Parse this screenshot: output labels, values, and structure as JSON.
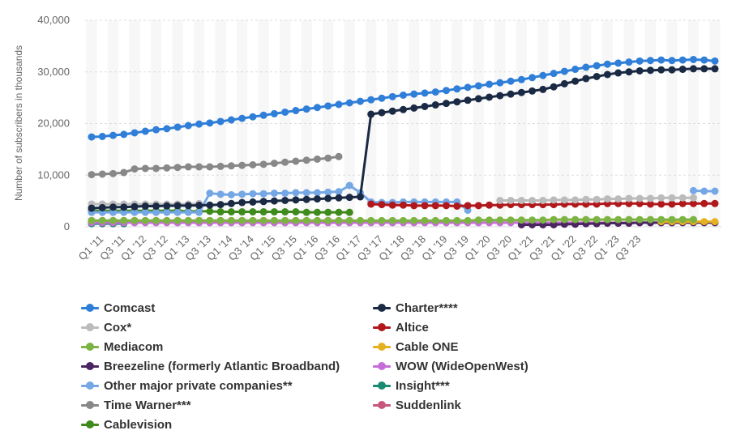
{
  "chart_data": {
    "type": "line",
    "ylabel": "Number of subscribers in thousands",
    "ylim": [
      0,
      40000
    ],
    "yticks": [
      0,
      10000,
      20000,
      30000,
      40000
    ],
    "ytick_labels": [
      "0",
      "10,000",
      "20,000",
      "30,000",
      "40,000"
    ],
    "grid": "horizontal",
    "legend_position": "bottom",
    "x_tick_labels": [
      "Q1 '11",
      "Q3 '11",
      "Q1 '12",
      "Q3 '12",
      "Q1 '13",
      "Q3 '13",
      "Q1 '14",
      "Q3 '14",
      "Q1 '15",
      "Q3 '15",
      "Q1 '16",
      "Q3 '16",
      "Q1 '17",
      "Q3 '17",
      "Q1 '18",
      "Q3 '18",
      "Q1 '19",
      "Q3 '19",
      "Q1 '20",
      "Q3 '20",
      "Q1 '21",
      "Q3 '21",
      "Q1 '22",
      "Q3 '22",
      "Q1 '23",
      "Q3 '23"
    ],
    "series": [
      {
        "name": "Comcast",
        "color": "#2f7ed8",
        "start": 0,
        "values": [
          17400,
          17500,
          17700,
          17900,
          18200,
          18500,
          18800,
          19000,
          19300,
          19600,
          19900,
          20100,
          20400,
          20700,
          21000,
          21300,
          21600,
          21900,
          22200,
          22500,
          22800,
          23100,
          23400,
          23700,
          24000,
          24300,
          24600,
          24900,
          25200,
          25500,
          25700,
          25900,
          26100,
          26400,
          26700,
          27000,
          27300,
          27600,
          27900,
          28200,
          28500,
          28900,
          29300,
          29700,
          30100,
          30500,
          30900,
          31200,
          31500,
          31700,
          31900,
          32100,
          32200,
          32300,
          32200,
          32300,
          32400,
          32300,
          32100
        ]
      },
      {
        "name": "Charter****",
        "color": "#1b2a44",
        "start": 0,
        "values": [
          3600,
          3700,
          3800,
          3800,
          3900,
          4000,
          4000,
          4050,
          4100,
          4100,
          4150,
          4200,
          4300,
          4500,
          4700,
          4800,
          4900,
          5000,
          5100,
          5200,
          5300,
          5400,
          5500,
          5600,
          5700,
          5800,
          21800,
          22100,
          22400,
          22700,
          23000,
          23300,
          23600,
          23900,
          24200,
          24500,
          24800,
          25100,
          25400,
          25700,
          26000,
          26300,
          26600,
          27100,
          27700,
          28200,
          28700,
          29100,
          29500,
          29800,
          30000,
          30200,
          30300,
          30400,
          30400,
          30500,
          30600,
          30600,
          30600
        ]
      },
      {
        "name": "Cox*",
        "color": "#bbbbbb",
        "start": 0,
        "values": [
          4400,
          4400,
          4400,
          4400,
          4400,
          4400,
          4400,
          4400,
          4400,
          4400,
          4500,
          null,
          null,
          null,
          null,
          null,
          null,
          null,
          null,
          null,
          null,
          null,
          null,
          null,
          null,
          null,
          null,
          null,
          null,
          null,
          null,
          null,
          null,
          null,
          null,
          null,
          null,
          null,
          5100,
          5100,
          5100,
          5100,
          5100,
          5200,
          5200,
          5200,
          5300,
          5300,
          5400,
          5400,
          5500,
          5500,
          5500,
          5600,
          5600,
          5600,
          5600
        ]
      },
      {
        "name": "Altice",
        "color": "#b0181c",
        "start": 26,
        "values": [
          4400,
          4300,
          4200,
          4200,
          4100,
          4100,
          4100,
          4100,
          4000,
          4100,
          4100,
          4200,
          4200,
          4300,
          4300,
          4300,
          4300,
          4300,
          4400,
          4400,
          4400,
          4400,
          4500,
          4500,
          4500,
          4500,
          4400,
          4400,
          4400,
          4500,
          4500,
          4500,
          4500
        ]
      },
      {
        "name": "Mediacom",
        "color": "#7cb342",
        "start": 0,
        "values": [
          1200,
          1200,
          1200,
          1200,
          1200,
          1200,
          1200,
          1200,
          1200,
          1200,
          1200,
          1200,
          1200,
          1200,
          1200,
          1200,
          1200,
          1200,
          1200,
          1200,
          1200,
          1200,
          1200,
          1200,
          1200,
          1200,
          1200,
          1200,
          1200,
          1200,
          1200,
          1200,
          1200,
          1200,
          1200,
          1200,
          1300,
          1300,
          1300,
          1300,
          1300,
          1300,
          1300,
          1400,
          1400,
          1400,
          1400,
          1400,
          1400,
          1400,
          1400,
          1400,
          1400,
          1400,
          1400,
          1400,
          1400
        ]
      },
      {
        "name": "Cable ONE",
        "color": "#e6b121",
        "start": 53,
        "values": [
          1000,
          1000,
          1000,
          1000,
          1000,
          1000
        ]
      },
      {
        "name": "Breezeline (formerly Atlantic Broadband)",
        "color": "#4a2560",
        "start": 40,
        "values": [
          400,
          400,
          400,
          400,
          500,
          500,
          600,
          600,
          700,
          700,
          700,
          800,
          800,
          800,
          800,
          800,
          800,
          800,
          800
        ]
      },
      {
        "name": "WOW (WideOpenWest)",
        "color": "#c66dd9",
        "start": 0,
        "values": [
          800,
          800,
          800,
          800,
          800,
          800,
          800,
          800,
          800,
          800,
          800,
          800,
          800,
          800,
          800,
          800,
          800,
          800,
          800,
          800,
          800,
          800,
          800,
          800,
          800,
          800,
          800,
          800,
          800,
          800,
          800,
          800,
          800,
          800,
          800,
          800,
          800,
          800,
          800,
          800,
          800,
          800,
          800,
          800,
          800,
          800,
          800,
          800,
          800,
          800,
          800,
          800,
          800,
          800,
          800
        ]
      },
      {
        "name": "Other major private companies**",
        "color": "#74a7e4",
        "start": 0,
        "values": [
          2800,
          2800,
          2800,
          2800,
          2800,
          2800,
          2800,
          2800,
          2800,
          2800,
          2800,
          6500,
          6300,
          6200,
          6300,
          6400,
          6400,
          6500,
          6500,
          6600,
          6600,
          6600,
          6700,
          6800,
          8000,
          6600,
          4800,
          4700,
          4700,
          4800,
          4800,
          4800,
          4800,
          4800,
          4800,
          3200,
          null,
          null,
          null,
          null,
          null,
          null,
          null,
          null,
          null,
          null,
          null,
          null,
          null,
          null,
          null,
          null,
          null,
          null,
          null,
          null,
          7000,
          6900,
          6900
        ]
      },
      {
        "name": "Insight***",
        "color": "#1a8a72",
        "start": 0,
        "values": [
          600,
          600,
          600,
          600
        ]
      },
      {
        "name": "Time Warner***",
        "color": "#888888",
        "start": 0,
        "values": [
          10100,
          10200,
          10300,
          10500,
          11200,
          11300,
          11300,
          11400,
          11500,
          11600,
          11600,
          11600,
          11700,
          11800,
          11900,
          12000,
          12100,
          12300,
          12500,
          12700,
          12900,
          13100,
          13300,
          13600
        ]
      },
      {
        "name": "Suddenlink",
        "color": "#c8567a",
        "start": 0,
        "values": [
          1200,
          1200,
          1200,
          1200,
          1200,
          1200,
          1200,
          1200,
          1200,
          1200,
          1200,
          1200,
          1200,
          1200,
          1200,
          1200,
          1200,
          1200,
          1200,
          1200,
          1200,
          1200,
          1200,
          1200,
          1200
        ]
      },
      {
        "name": "Cablevision",
        "color": "#3f8a1c",
        "start": 0,
        "values": [
          3100,
          3100,
          3100,
          3100,
          3100,
          3100,
          3100,
          3100,
          3100,
          3000,
          3000,
          3000,
          2900,
          2900,
          2900,
          2900,
          2900,
          2900,
          2900,
          2900,
          2800,
          2800,
          2800,
          2800,
          2800
        ]
      }
    ]
  }
}
